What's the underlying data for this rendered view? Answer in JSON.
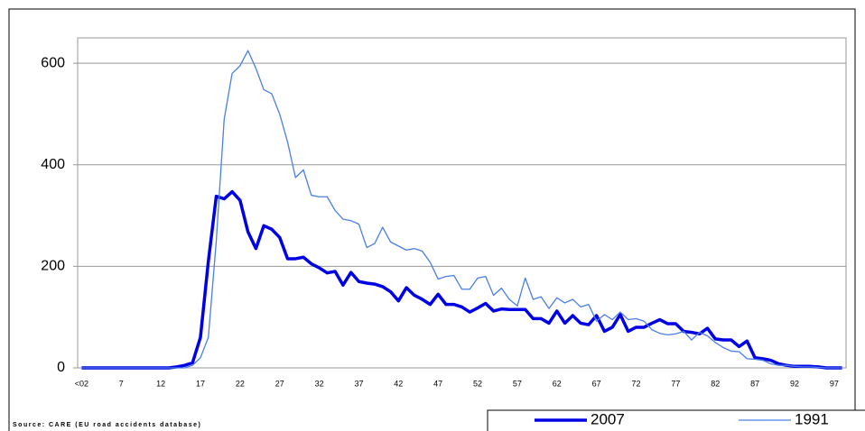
{
  "chart_data": {
    "type": "line",
    "source": "Source: CARE (EU road accidents database)",
    "categories": [
      "<02",
      null,
      null,
      null,
      null,
      "7",
      null,
      null,
      null,
      null,
      "12",
      null,
      null,
      null,
      null,
      "17",
      null,
      null,
      null,
      null,
      "22",
      null,
      null,
      null,
      null,
      "27",
      null,
      null,
      null,
      null,
      "32",
      null,
      null,
      null,
      null,
      "37",
      null,
      null,
      null,
      null,
      "42",
      null,
      null,
      null,
      null,
      "47",
      null,
      null,
      null,
      null,
      "52",
      null,
      null,
      null,
      null,
      "57",
      null,
      null,
      null,
      null,
      "62",
      null,
      null,
      null,
      null,
      "67",
      null,
      null,
      null,
      null,
      "72",
      null,
      null,
      null,
      null,
      "77",
      null,
      null,
      null,
      null,
      "82",
      null,
      null,
      null,
      null,
      "87",
      null,
      null,
      null,
      null,
      "92",
      null,
      null,
      null,
      null,
      "97",
      null
    ],
    "series": [
      {
        "name": "2007",
        "color": "#0000e6",
        "values": [
          0,
          0,
          0,
          0,
          0,
          0,
          0,
          0,
          0,
          0,
          0,
          0,
          2,
          5,
          10,
          60,
          210,
          338,
          333,
          347,
          330,
          268,
          235,
          280,
          273,
          257,
          215,
          215,
          218,
          205,
          197,
          187,
          190,
          163,
          188,
          170,
          167,
          165,
          160,
          150,
          132,
          158,
          143,
          135,
          125,
          145,
          125,
          125,
          120,
          110,
          118,
          127,
          112,
          116,
          115,
          115,
          115,
          97,
          97,
          88,
          112,
          88,
          103,
          88,
          85,
          103,
          72,
          80,
          105,
          72,
          80,
          80,
          88,
          95,
          87,
          87,
          72,
          70,
          67,
          78,
          57,
          55,
          55,
          42,
          53,
          20,
          18,
          15,
          8,
          5,
          3,
          3,
          3,
          2,
          0,
          0,
          0
        ]
      },
      {
        "name": "1991",
        "color": "#4a7fe8",
        "values": [
          0,
          0,
          0,
          0,
          0,
          0,
          0,
          0,
          0,
          0,
          0,
          0,
          0,
          0,
          5,
          20,
          60,
          250,
          490,
          580,
          595,
          625,
          590,
          548,
          540,
          500,
          445,
          375,
          390,
          340,
          337,
          337,
          310,
          293,
          290,
          283,
          237,
          245,
          277,
          248,
          240,
          232,
          235,
          230,
          208,
          175,
          180,
          182,
          155,
          155,
          177,
          180,
          143,
          157,
          135,
          122,
          177,
          135,
          140,
          117,
          138,
          128,
          135,
          120,
          125,
          92,
          105,
          95,
          110,
          95,
          97,
          92,
          75,
          68,
          65,
          67,
          72,
          55,
          70,
          63,
          50,
          40,
          33,
          32,
          18,
          17,
          15,
          8,
          5,
          5,
          3,
          2,
          2,
          1,
          0,
          0,
          0
        ]
      }
    ],
    "ylim": [
      0,
      650
    ],
    "yticks": [
      0,
      200,
      400,
      600
    ],
    "grid": true
  }
}
